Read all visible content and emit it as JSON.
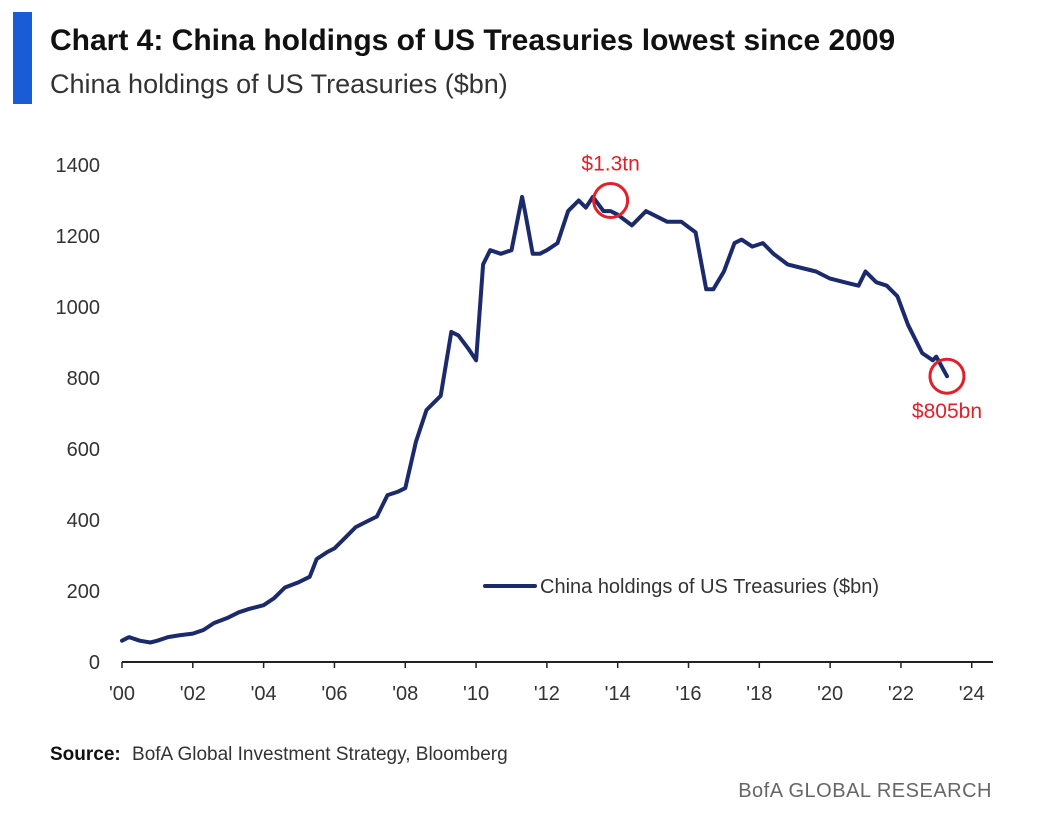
{
  "header": {
    "title": "Chart 4: China holdings of US Treasuries lowest since 2009",
    "subtitle": "China holdings of US Treasuries ($bn)"
  },
  "footer": {
    "source_label": "Source:",
    "source_text": "BofA Global Investment Strategy, Bloomberg",
    "brand": "BofA GLOBAL RESEARCH"
  },
  "colors": {
    "accent": "#1a5bd6",
    "line": "#1b2a6b",
    "annotation": "#e0202a"
  },
  "chart_data": {
    "type": "line",
    "title": "Chart 4: China holdings of US Treasuries lowest since 2009",
    "subtitle": "China holdings of US Treasuries ($bn)",
    "xlabel": "",
    "ylabel": "",
    "xlim": [
      2000,
      2024.6
    ],
    "ylim": [
      0,
      1400
    ],
    "yticks": [
      0,
      200,
      400,
      600,
      800,
      1000,
      1200,
      1400
    ],
    "xticks": [
      {
        "value": 2000,
        "label": "'00"
      },
      {
        "value": 2002,
        "label": "'02"
      },
      {
        "value": 2004,
        "label": "'04"
      },
      {
        "value": 2006,
        "label": "'06"
      },
      {
        "value": 2008,
        "label": "'08"
      },
      {
        "value": 2010,
        "label": "'10"
      },
      {
        "value": 2012,
        "label": "'12"
      },
      {
        "value": 2014,
        "label": "'14"
      },
      {
        "value": 2016,
        "label": "'16"
      },
      {
        "value": 2018,
        "label": "'18"
      },
      {
        "value": 2020,
        "label": "'20"
      },
      {
        "value": 2022,
        "label": "'22"
      },
      {
        "value": 2024,
        "label": "'24"
      }
    ],
    "grid": false,
    "legend": {
      "position": "center-right"
    },
    "series": [
      {
        "name": "China holdings of US Treasuries ($bn)",
        "x": [
          2000.0,
          2000.2,
          2000.5,
          2000.8,
          2001.0,
          2001.3,
          2001.6,
          2002.0,
          2002.3,
          2002.6,
          2003.0,
          2003.3,
          2003.6,
          2004.0,
          2004.3,
          2004.6,
          2005.0,
          2005.3,
          2005.5,
          2005.8,
          2006.0,
          2006.3,
          2006.6,
          2007.0,
          2007.2,
          2007.5,
          2007.8,
          2008.0,
          2008.3,
          2008.6,
          2009.0,
          2009.3,
          2009.5,
          2009.8,
          2010.0,
          2010.2,
          2010.4,
          2010.7,
          2011.0,
          2011.3,
          2011.4,
          2011.6,
          2011.8,
          2012.0,
          2012.3,
          2012.6,
          2012.9,
          2013.1,
          2013.3,
          2013.6,
          2013.8,
          2014.0,
          2014.4,
          2014.8,
          2015.0,
          2015.4,
          2015.8,
          2016.2,
          2016.5,
          2016.7,
          2017.0,
          2017.3,
          2017.5,
          2017.8,
          2018.1,
          2018.4,
          2018.8,
          2019.2,
          2019.6,
          2020.0,
          2020.4,
          2020.8,
          2021.0,
          2021.3,
          2021.6,
          2021.9,
          2022.2,
          2022.6,
          2022.9,
          2023.0,
          2023.3
        ],
        "values": [
          60,
          70,
          60,
          55,
          60,
          70,
          75,
          80,
          90,
          110,
          125,
          140,
          150,
          160,
          180,
          210,
          225,
          240,
          290,
          310,
          320,
          350,
          380,
          400,
          410,
          470,
          480,
          490,
          620,
          710,
          750,
          930,
          920,
          880,
          850,
          1120,
          1160,
          1150,
          1160,
          1310,
          1260,
          1150,
          1150,
          1160,
          1180,
          1270,
          1300,
          1280,
          1310,
          1270,
          1270,
          1260,
          1230,
          1270,
          1260,
          1240,
          1240,
          1210,
          1050,
          1050,
          1100,
          1180,
          1190,
          1170,
          1180,
          1150,
          1120,
          1110,
          1100,
          1080,
          1070,
          1060,
          1100,
          1070,
          1060,
          1030,
          950,
          870,
          850,
          860,
          805
        ]
      }
    ],
    "annotations": [
      {
        "label": "$1.3tn",
        "x": 2013.8,
        "y": 1300
      },
      {
        "label": "$805bn",
        "x": 2023.3,
        "y": 805
      }
    ]
  }
}
